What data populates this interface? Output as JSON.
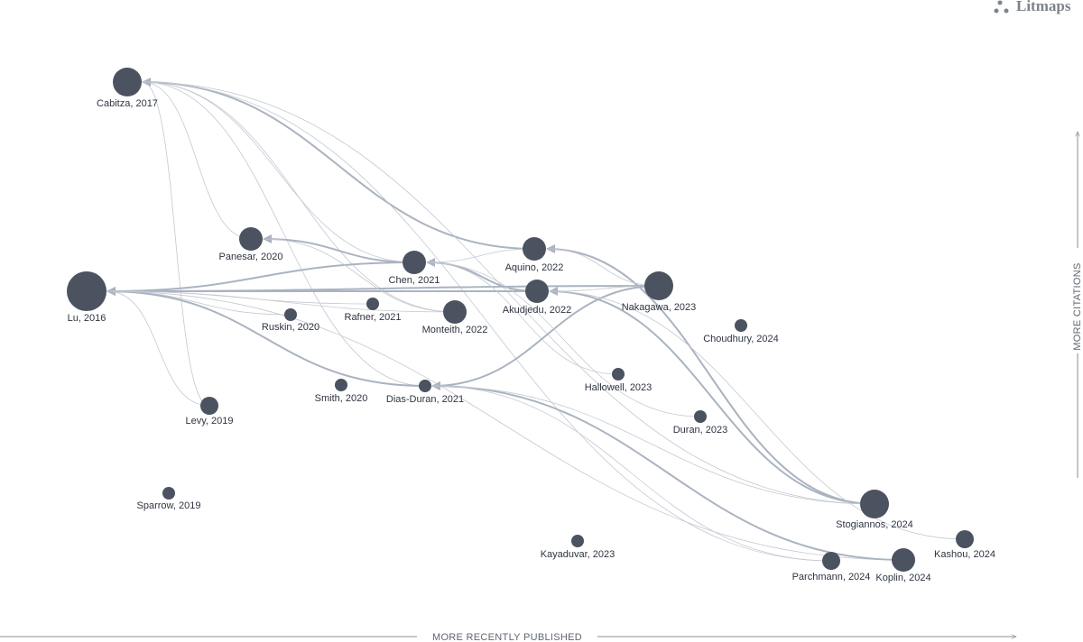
{
  "brand": "Litmaps",
  "axes": {
    "x": "MORE RECENTLY PUBLISHED",
    "y": "MORE CITATIONS"
  },
  "nodes": [
    {
      "label": "Cabitza, 2017"
    },
    {
      "label": "Panesar, 2020"
    },
    {
      "label": "Lu, 2016"
    },
    {
      "label": "Chen, 2021"
    },
    {
      "label": "Aquino, 2022"
    },
    {
      "label": "Akudjedu, 2022"
    },
    {
      "label": "Nakagawa, 2023"
    },
    {
      "label": "Rafner, 2021"
    },
    {
      "label": "Monteith, 2022"
    },
    {
      "label": "Ruskin, 2020"
    },
    {
      "label": "Choudhury, 2024"
    },
    {
      "label": "Hallowell, 2023"
    },
    {
      "label": "Dias-Duran, 2021"
    },
    {
      "label": "Smith, 2020"
    },
    {
      "label": "Levy, 2019"
    },
    {
      "label": "Duran, 2023"
    },
    {
      "label": "Sparrow, 2019"
    },
    {
      "label": "Stogiannos, 2024"
    },
    {
      "label": "Kashou, 2024"
    },
    {
      "label": "Kayaduvar, 2023"
    },
    {
      "label": "Parchmann, 2024"
    },
    {
      "label": "Koplin, 2024"
    }
  ]
}
